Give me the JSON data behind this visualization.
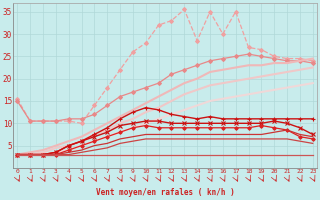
{
  "xlabel": "Vent moyen/en rafales ( kn/h )",
  "background_color": "#c8ecec",
  "grid_color": "#b0d8d8",
  "x": [
    0,
    1,
    2,
    3,
    4,
    5,
    6,
    7,
    8,
    9,
    10,
    11,
    12,
    13,
    14,
    15,
    16,
    17,
    18,
    19,
    20,
    21,
    22,
    23
  ],
  "ylim": [
    0,
    37
  ],
  "yticks": [
    0,
    5,
    10,
    15,
    20,
    25,
    30,
    35
  ],
  "lines": [
    {
      "y": [
        15.5,
        10.5,
        10.5,
        10.5,
        10.5,
        10.0,
        14.0,
        18.0,
        22.0,
        26.0,
        28.0,
        32.0,
        33.0,
        35.5,
        28.5,
        35.0,
        30.0,
        35.0,
        27.0,
        26.5,
        25.0,
        24.5,
        24.5,
        24.0
      ],
      "color": "#f0a0a0",
      "marker": "D",
      "markersize": 2.0,
      "linewidth": 0.9,
      "linestyle": "--"
    },
    {
      "y": [
        15.0,
        10.5,
        10.5,
        10.5,
        11.0,
        11.0,
        12.0,
        14.0,
        16.0,
        17.0,
        18.0,
        19.0,
        21.0,
        22.0,
        23.0,
        24.0,
        24.5,
        25.0,
        25.5,
        25.0,
        24.5,
        24.0,
        24.0,
        23.5
      ],
      "color": "#e88888",
      "marker": "D",
      "markersize": 2.0,
      "linewidth": 0.9,
      "linestyle": "-"
    },
    {
      "y": [
        3.0,
        3.5,
        4.0,
        5.0,
        6.0,
        7.0,
        8.5,
        10.0,
        11.5,
        13.0,
        14.5,
        16.0,
        17.5,
        19.0,
        20.0,
        21.5,
        22.0,
        22.5,
        23.0,
        23.0,
        23.5,
        23.5,
        24.0,
        24.5
      ],
      "color": "#f0b8b8",
      "marker": null,
      "markersize": 0,
      "linewidth": 1.5,
      "linestyle": "-"
    },
    {
      "y": [
        3.0,
        3.0,
        3.5,
        4.5,
        5.0,
        6.0,
        7.5,
        8.5,
        10.0,
        11.0,
        12.5,
        13.5,
        15.0,
        16.5,
        17.5,
        18.5,
        19.0,
        19.5,
        20.0,
        20.5,
        21.0,
        21.5,
        22.0,
        22.5
      ],
      "color": "#f0c8c8",
      "marker": null,
      "markersize": 0,
      "linewidth": 1.5,
      "linestyle": "-"
    },
    {
      "y": [
        3.0,
        3.0,
        3.0,
        3.5,
        4.0,
        5.0,
        6.0,
        7.0,
        8.0,
        9.0,
        10.0,
        11.0,
        12.0,
        13.0,
        14.0,
        15.0,
        15.5,
        16.0,
        16.5,
        17.0,
        17.5,
        18.0,
        18.5,
        19.0
      ],
      "color": "#f0d8d8",
      "marker": null,
      "markersize": 0,
      "linewidth": 1.5,
      "linestyle": "-"
    },
    {
      "y": [
        3.0,
        3.0,
        3.0,
        3.5,
        5.0,
        6.0,
        7.5,
        9.0,
        11.0,
        12.5,
        13.5,
        13.0,
        12.0,
        11.5,
        11.0,
        11.5,
        11.0,
        11.0,
        11.0,
        11.0,
        11.0,
        11.0,
        11.0,
        11.0
      ],
      "color": "#cc1111",
      "marker": "+",
      "markersize": 3.5,
      "linewidth": 1.0,
      "linestyle": "-"
    },
    {
      "y": [
        3.0,
        3.0,
        3.0,
        3.5,
        5.0,
        6.0,
        7.0,
        8.0,
        9.5,
        10.0,
        10.5,
        10.5,
        10.0,
        10.0,
        10.0,
        10.0,
        10.0,
        10.0,
        10.0,
        10.0,
        10.5,
        10.0,
        9.0,
        7.5
      ],
      "color": "#cc1111",
      "marker": "x",
      "markersize": 2.5,
      "linewidth": 1.0,
      "linestyle": "-"
    },
    {
      "y": [
        3.0,
        3.0,
        3.0,
        3.0,
        4.0,
        5.0,
        6.0,
        7.0,
        8.0,
        9.0,
        9.5,
        9.0,
        9.0,
        9.0,
        9.0,
        9.0,
        9.0,
        9.0,
        9.0,
        9.5,
        9.0,
        8.5,
        7.0,
        6.5
      ],
      "color": "#dd2222",
      "marker": "D",
      "markersize": 1.8,
      "linewidth": 0.9,
      "linestyle": "-"
    },
    {
      "y": [
        3.0,
        3.0,
        3.0,
        3.0,
        3.5,
        4.0,
        5.0,
        5.5,
        6.5,
        7.0,
        7.5,
        7.5,
        7.5,
        7.5,
        7.5,
        7.5,
        7.5,
        7.5,
        7.5,
        7.5,
        8.0,
        8.5,
        7.5,
        7.0
      ],
      "color": "#cc3333",
      "marker": null,
      "markersize": 0,
      "linewidth": 0.9,
      "linestyle": "-"
    },
    {
      "y": [
        3.0,
        3.0,
        3.0,
        3.0,
        3.0,
        3.5,
        4.0,
        4.5,
        5.5,
        6.0,
        6.5,
        6.5,
        6.5,
        6.5,
        6.5,
        6.5,
        6.5,
        6.5,
        6.5,
        6.5,
        6.5,
        6.5,
        6.0,
        5.5
      ],
      "color": "#cc4444",
      "marker": null,
      "markersize": 0,
      "linewidth": 0.9,
      "linestyle": "-"
    },
    {
      "y": [
        3.0,
        3.0,
        3.0,
        3.0,
        3.0,
        3.0,
        3.0,
        3.0,
        3.0,
        3.0,
        3.0,
        3.0,
        3.0,
        3.0,
        3.0,
        3.0,
        3.0,
        3.0,
        3.0,
        3.0,
        3.0,
        3.0,
        3.0,
        3.0
      ],
      "color": "#cc5555",
      "marker": null,
      "markersize": 0,
      "linewidth": 0.9,
      "linestyle": "-"
    }
  ]
}
